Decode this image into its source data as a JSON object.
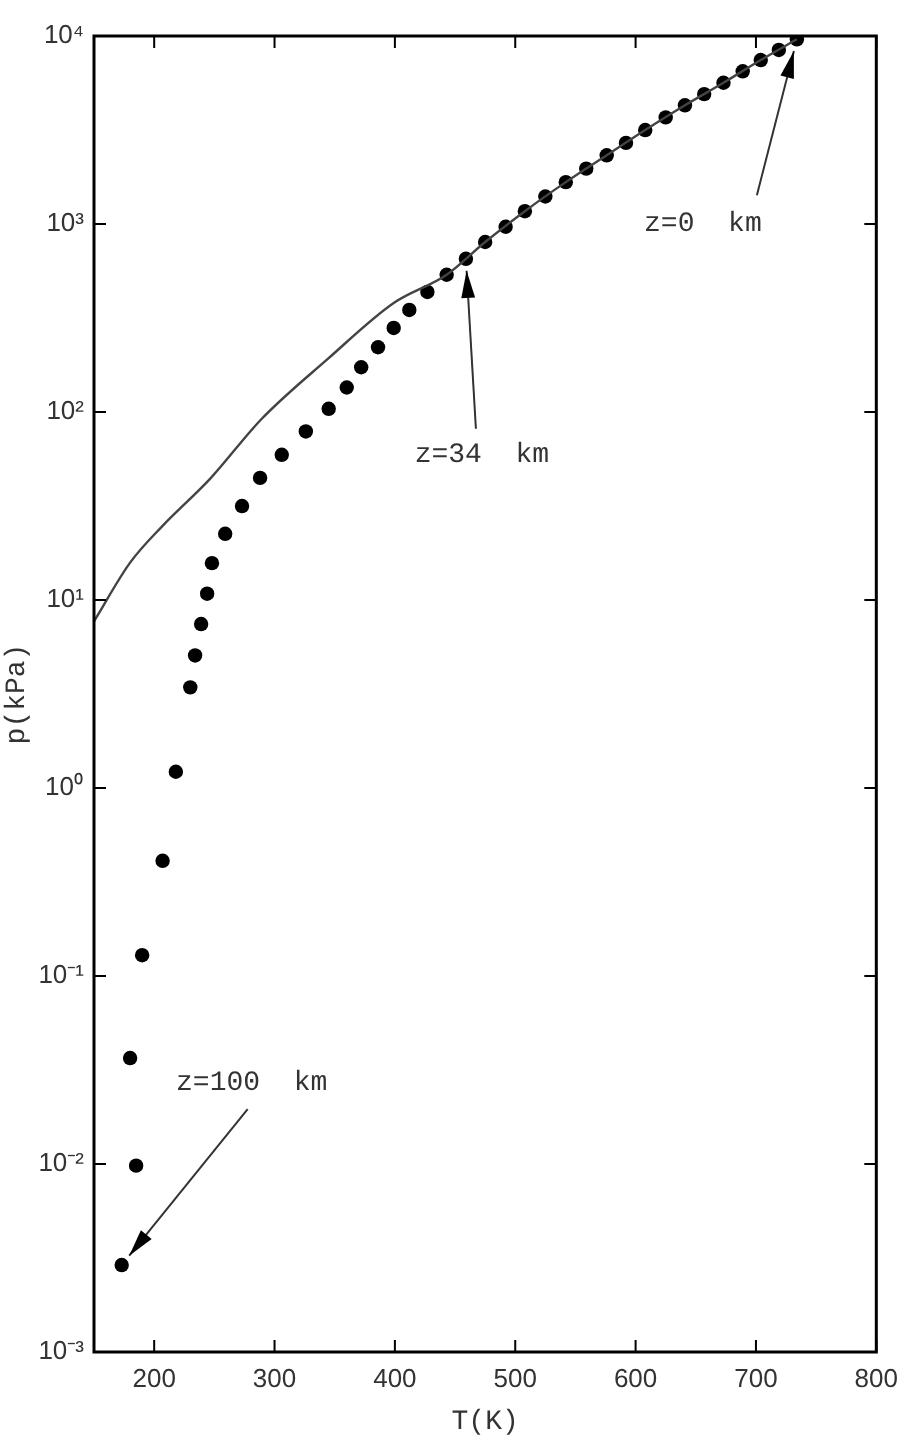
{
  "chart_data": {
    "type": "scatter",
    "xlabel": "T(K)",
    "ylabel": "p(kPa)",
    "log": "y",
    "grid": false,
    "xlim": [
      150,
      800
    ],
    "xticks": [
      200,
      300,
      400,
      500,
      600,
      700,
      800
    ],
    "ylim": [
      0.001,
      10000
    ],
    "yticks": [
      {
        "value": 0.001,
        "label": "10⁻³"
      },
      {
        "value": 0.01,
        "label": "10⁻²"
      },
      {
        "value": 0.1,
        "label": "10⁻¹"
      },
      {
        "value": 1,
        "label": "10⁰"
      },
      {
        "value": 10,
        "label": "10¹"
      },
      {
        "value": 100,
        "label": "10²"
      },
      {
        "value": 1000,
        "label": "10³"
      },
      {
        "value": 10000,
        "label": "10⁴"
      }
    ],
    "series": [
      {
        "type": "line",
        "color": "#444444",
        "marker": "none",
        "line_style": "solid",
        "x": [
          150,
          180,
          207,
          246,
          289,
          344,
          399,
          443,
          475,
          508,
          542,
          576,
          608,
          641,
          673,
          704,
          734
        ],
        "values": [
          7.7,
          15.8,
          24.8,
          43.8,
          91.5,
          191,
          380,
          537,
          802,
          1170,
          1670,
          2320,
          3160,
          4280,
          5640,
          7450,
          9600
        ]
      },
      {
        "type": "scatter",
        "color": "#000000",
        "marker": "circle",
        "x": [
          734,
          719,
          704,
          689,
          673,
          657,
          641,
          625,
          608,
          592,
          576,
          559,
          542,
          525,
          508,
          492,
          475,
          459,
          443,
          427,
          412,
          399,
          386,
          372,
          360,
          345,
          326,
          306,
          288,
          273,
          259,
          248,
          244,
          239,
          234,
          230,
          218,
          207,
          190,
          180,
          185,
          173
        ],
        "values": [
          9600,
          8430,
          7450,
          6490,
          5640,
          4910,
          4280,
          3690,
          3160,
          2700,
          2320,
          1970,
          1670,
          1400,
          1170,
          967,
          802,
          653,
          537,
          435,
          349,
          280,
          221,
          173,
          135,
          104,
          78.8,
          59.2,
          44.6,
          31.6,
          22.5,
          15.7,
          10.8,
          7.45,
          5.07,
          3.43,
          1.22,
          0.41,
          0.129,
          0.0366,
          0.0098,
          0.0029
        ]
      }
    ],
    "annotations": [
      {
        "text": "z=0  km",
        "x": 734,
        "y": 9600
      },
      {
        "text": "z=34  km",
        "x": 459,
        "y": 653
      },
      {
        "text": "z=100  km",
        "x": 173,
        "y": 0.0029
      }
    ]
  }
}
